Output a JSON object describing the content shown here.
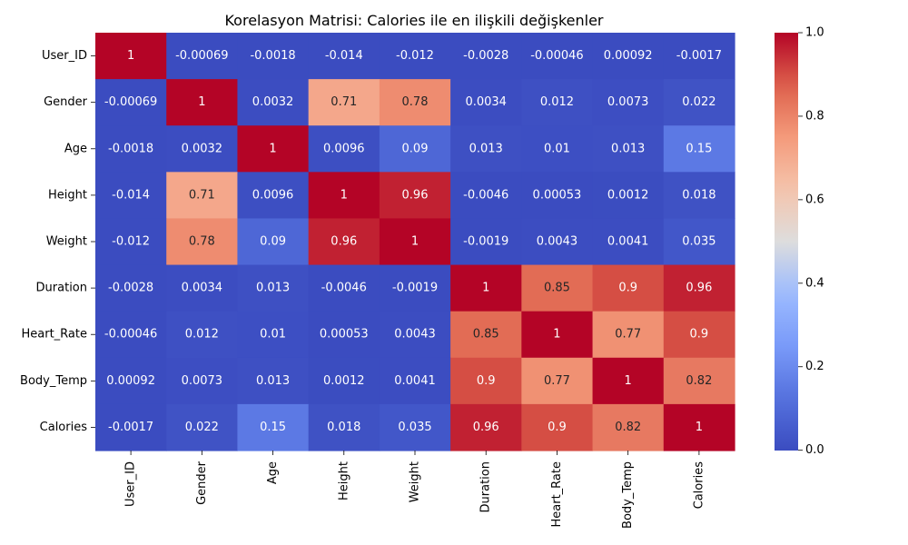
{
  "chart_data": {
    "type": "heatmap",
    "title": "Korelasyon Matrisi: Calories ile en ilişkili değişkenler",
    "xlabel": "",
    "ylabel": "",
    "colormap": "coolwarm",
    "value_range": [
      -0.00069,
      1
    ],
    "colorbar": {
      "ticks": [
        0.0,
        0.2,
        0.4,
        0.6,
        0.8,
        1.0
      ],
      "tick_labels": [
        "0.0",
        "0.2",
        "0.4",
        "0.6",
        "0.8",
        "1.0"
      ],
      "placement": "right"
    },
    "rows": [
      "User_ID",
      "Gender",
      "Age",
      "Height",
      "Weight",
      "Duration",
      "Heart_Rate",
      "Body_Temp",
      "Calories"
    ],
    "columns": [
      "User_ID",
      "Gender",
      "Age",
      "Height",
      "Weight",
      "Duration",
      "Heart_Rate",
      "Body_Temp",
      "Calories"
    ],
    "values": [
      [
        1,
        -0.00069,
        -0.0018,
        -0.014,
        -0.012,
        -0.0028,
        -0.00046,
        0.00092,
        -0.0017
      ],
      [
        -0.00069,
        1,
        0.0032,
        0.71,
        0.78,
        0.0034,
        0.012,
        0.0073,
        0.022
      ],
      [
        -0.0018,
        0.0032,
        1,
        0.0096,
        0.09,
        0.013,
        0.01,
        0.013,
        0.15
      ],
      [
        -0.014,
        0.71,
        0.0096,
        1,
        0.96,
        -0.0046,
        0.00053,
        0.0012,
        0.018
      ],
      [
        -0.012,
        0.78,
        0.09,
        0.96,
        1,
        -0.0019,
        0.0043,
        0.0041,
        0.035
      ],
      [
        -0.0028,
        0.0034,
        0.013,
        -0.0046,
        -0.0019,
        1,
        0.85,
        0.9,
        0.96
      ],
      [
        -0.00046,
        0.012,
        0.01,
        0.00053,
        0.0043,
        0.85,
        1,
        0.77,
        0.9
      ],
      [
        0.00092,
        0.0073,
        0.013,
        0.0012,
        0.0041,
        0.9,
        0.77,
        1,
        0.82
      ],
      [
        -0.0017,
        0.022,
        0.15,
        0.018,
        0.035,
        0.96,
        0.9,
        0.82,
        1
      ]
    ],
    "cell_labels": [
      [
        "1",
        "-0.00069",
        "-0.0018",
        "-0.014",
        "-0.012",
        "-0.0028",
        "-0.00046",
        "0.00092",
        "-0.0017"
      ],
      [
        "-0.00069",
        "1",
        "0.0032",
        "0.71",
        "0.78",
        "0.0034",
        "0.012",
        "0.0073",
        "0.022"
      ],
      [
        "-0.0018",
        "0.0032",
        "1",
        "0.0096",
        "0.09",
        "0.013",
        "0.01",
        "0.013",
        "0.15"
      ],
      [
        "-0.014",
        "0.71",
        "0.0096",
        "1",
        "0.96",
        "-0.0046",
        "0.00053",
        "0.0012",
        "0.018"
      ],
      [
        "-0.012",
        "0.78",
        "0.09",
        "0.96",
        "1",
        "-0.0019",
        "0.0043",
        "0.0041",
        "0.035"
      ],
      [
        "-0.0028",
        "0.0034",
        "0.013",
        "-0.0046",
        "-0.0019",
        "1",
        "0.85",
        "0.9",
        "0.96"
      ],
      [
        "-0.00046",
        "0.012",
        "0.01",
        "0.00053",
        "0.0043",
        "0.85",
        "1",
        "0.77",
        "0.9"
      ],
      [
        "0.00092",
        "0.0073",
        "0.013",
        "0.0012",
        "0.0041",
        "0.9",
        "0.77",
        "1",
        "0.82"
      ],
      [
        "-0.0017",
        "0.022",
        "0.15",
        "0.018",
        "0.035",
        "0.96",
        "0.9",
        "0.82",
        "1"
      ]
    ]
  }
}
